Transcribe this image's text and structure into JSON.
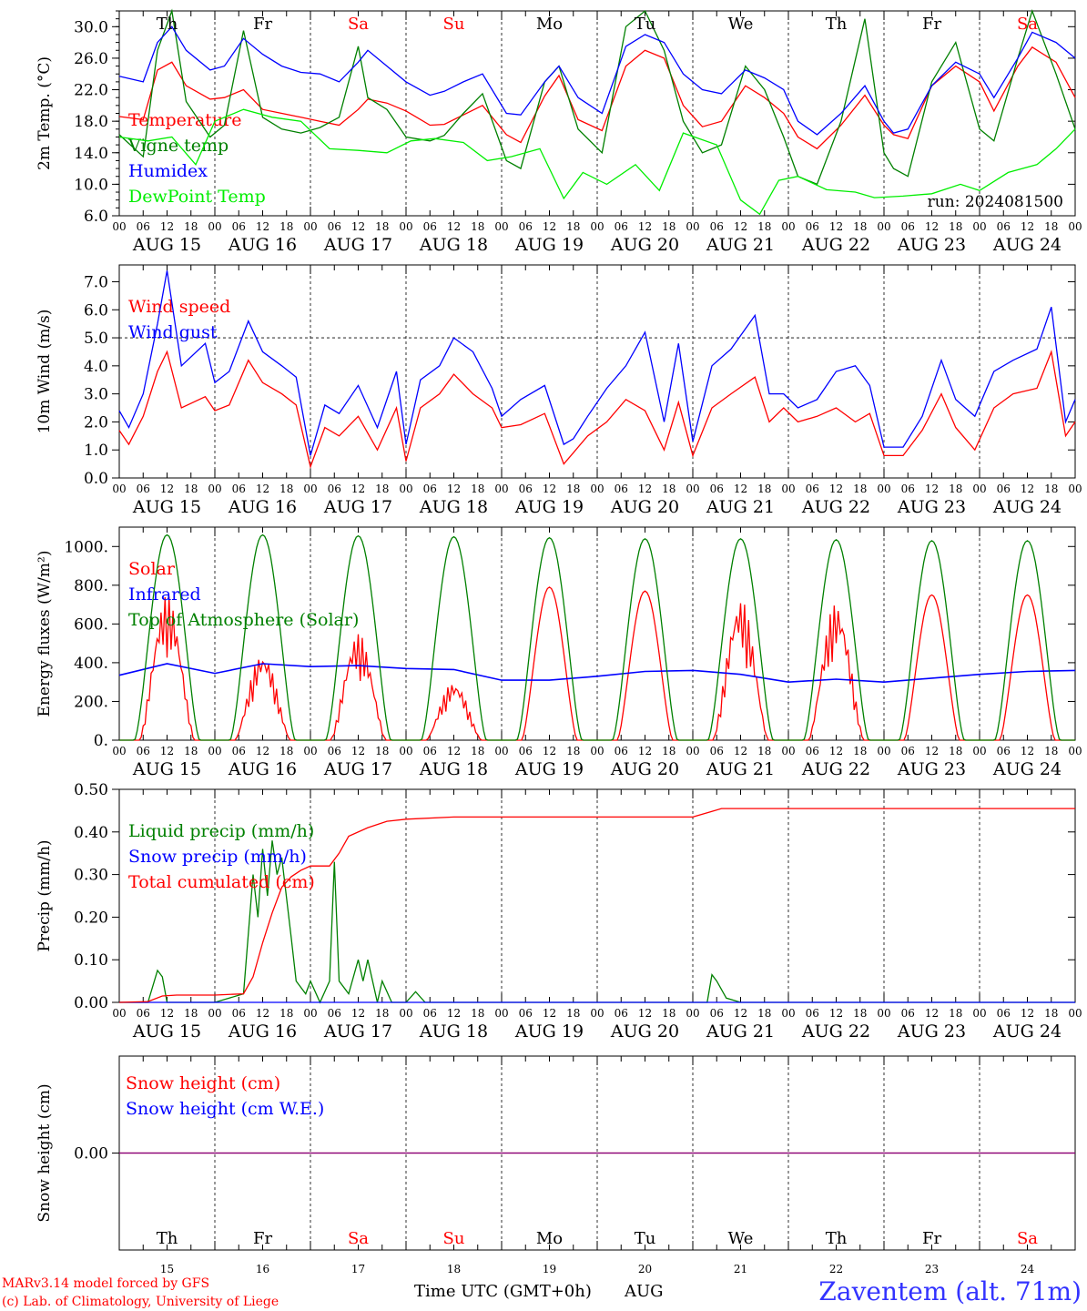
{
  "run_label": "run: 2024081500",
  "footer": {
    "model": "MARv3.14 model forced by GFS",
    "credit": "(c) Lab. of Climatology, University of Liege",
    "xaxis_title": "Time UTC (GMT+0h)",
    "month": "AUG",
    "location": "Zaventem (alt. 71m)"
  },
  "days": [
    {
      "abbr": "Th",
      "date": "AUG 15",
      "num": "15",
      "weekend": false
    },
    {
      "abbr": "Fr",
      "date": "AUG 16",
      "num": "16",
      "weekend": false
    },
    {
      "abbr": "Sa",
      "date": "AUG 17",
      "num": "17",
      "weekend": true
    },
    {
      "abbr": "Su",
      "date": "AUG 18",
      "num": "18",
      "weekend": true
    },
    {
      "abbr": "Mo",
      "date": "AUG 19",
      "num": "19",
      "weekend": false
    },
    {
      "abbr": "Tu",
      "date": "AUG 20",
      "num": "20",
      "weekend": false
    },
    {
      "abbr": "We",
      "date": "AUG 21",
      "num": "21",
      "weekend": false
    },
    {
      "abbr": "Th",
      "date": "AUG 22",
      "num": "22",
      "weekend": false
    },
    {
      "abbr": "Fr",
      "date": "AUG 23",
      "num": "23",
      "weekend": false
    },
    {
      "abbr": "Sa",
      "date": "AUG 24",
      "num": "24",
      "weekend": true
    }
  ],
  "hour_ticks": [
    "00",
    "06",
    "12",
    "18"
  ],
  "colors": {
    "red": "#ff0000",
    "green": "#008000",
    "blue": "#0000ff",
    "lightgreen": "#00ee00",
    "purple": "#800080",
    "weekend": "#ff0000"
  },
  "chart_data": [
    {
      "type": "line",
      "ylabel": "2m Temp. (°C)",
      "ylim": [
        6,
        32
      ],
      "yticks": [
        "6.0",
        "10.0",
        "14.0",
        "18.0",
        "22.0",
        "26.0",
        "30.0"
      ],
      "x_unit": "days since 2024-08-15 00 UTC",
      "xlim": [
        0,
        10
      ],
      "series": [
        {
          "name": "Temperature",
          "color": "#ff0000",
          "x": [
            0,
            0.25,
            0.4,
            0.55,
            0.7,
            0.95,
            1.1,
            1.3,
            1.5,
            1.7,
            1.9,
            2.1,
            2.3,
            2.5,
            2.6,
            2.8,
            3.0,
            3.25,
            3.4,
            3.6,
            3.8,
            4.05,
            4.2,
            4.45,
            4.6,
            4.8,
            5.05,
            5.3,
            5.5,
            5.7,
            5.9,
            6.1,
            6.3,
            6.55,
            6.75,
            6.95,
            7.1,
            7.3,
            7.55,
            7.8,
            8.0,
            8.1,
            8.25,
            8.5,
            8.75,
            9.0,
            9.15,
            9.4,
            9.55,
            9.8,
            10.0
          ],
          "y": [
            18.6,
            18.2,
            24.5,
            25.5,
            22.5,
            20.8,
            21.0,
            22.0,
            19.5,
            19.0,
            18.5,
            18.0,
            17.5,
            19.5,
            20.8,
            20.3,
            19.3,
            17.5,
            17.6,
            18.8,
            20.0,
            16.3,
            15.3,
            21.2,
            23.8,
            18.2,
            16.8,
            25.0,
            27.0,
            26.0,
            20.0,
            17.3,
            18.0,
            22.5,
            21.0,
            19.0,
            16.0,
            14.5,
            17.5,
            21.3,
            17.5,
            16.3,
            15.8,
            22.5,
            25.0,
            23.0,
            19.3,
            25.0,
            27.4,
            25.5,
            21.0
          ]
        },
        {
          "name": "Vigne temp",
          "color": "#008000",
          "x": [
            0,
            0.25,
            0.4,
            0.55,
            0.7,
            0.95,
            1.1,
            1.3,
            1.5,
            1.7,
            1.9,
            2.1,
            2.3,
            2.5,
            2.6,
            2.8,
            3.0,
            3.25,
            3.4,
            3.6,
            3.8,
            4.05,
            4.2,
            4.45,
            4.6,
            4.8,
            5.05,
            5.3,
            5.5,
            5.7,
            5.9,
            6.1,
            6.3,
            6.55,
            6.75,
            6.95,
            7.1,
            7.3,
            7.55,
            7.8,
            8.0,
            8.1,
            8.25,
            8.5,
            8.75,
            9.0,
            9.15,
            9.4,
            9.55,
            9.8,
            10.0
          ],
          "y": [
            16.3,
            13.5,
            27.0,
            32.0,
            20.5,
            16.0,
            17.5,
            29.5,
            18.5,
            17.0,
            16.5,
            17.2,
            18.5,
            27.5,
            21.0,
            19.5,
            16.0,
            15.5,
            16.2,
            19.0,
            21.5,
            13.0,
            12.0,
            23.0,
            25.0,
            17.0,
            14.0,
            30.0,
            32.0,
            27.0,
            18.0,
            14.0,
            15.0,
            25.0,
            22.0,
            16.0,
            11.0,
            10.0,
            18.0,
            31.0,
            14.0,
            12.0,
            11.0,
            23.0,
            28.0,
            17.0,
            15.5,
            26.0,
            32.0,
            24.0,
            17.0
          ]
        },
        {
          "name": "Humidex",
          "color": "#0000ff",
          "x": [
            0,
            0.25,
            0.4,
            0.55,
            0.7,
            0.95,
            1.1,
            1.3,
            1.5,
            1.7,
            1.9,
            2.1,
            2.3,
            2.5,
            2.6,
            2.8,
            3.0,
            3.25,
            3.4,
            3.6,
            3.8,
            4.05,
            4.2,
            4.45,
            4.6,
            4.8,
            5.05,
            5.3,
            5.5,
            5.7,
            5.9,
            6.1,
            6.3,
            6.55,
            6.75,
            6.95,
            7.1,
            7.3,
            7.55,
            7.8,
            8.0,
            8.1,
            8.25,
            8.5,
            8.75,
            9.0,
            9.15,
            9.4,
            9.55,
            9.8,
            10.0
          ],
          "y": [
            23.7,
            23.0,
            28.0,
            30.0,
            27.0,
            24.5,
            25.0,
            28.5,
            26.5,
            25.0,
            24.2,
            24.0,
            23.0,
            25.5,
            27.0,
            25.0,
            23.0,
            21.3,
            21.8,
            23.0,
            24.0,
            19.0,
            18.8,
            23.0,
            25.0,
            21.0,
            19.0,
            27.5,
            29.0,
            28.0,
            24.0,
            22.0,
            21.5,
            24.5,
            23.5,
            22.0,
            18.0,
            16.3,
            19.0,
            22.5,
            18.0,
            16.5,
            17.0,
            22.5,
            25.5,
            24.0,
            21.0,
            26.0,
            29.3,
            28.0,
            26.0
          ]
        },
        {
          "name": "DewPoint Temp",
          "color": "#00ee00",
          "x": [
            0,
            0.3,
            0.55,
            0.8,
            1.0,
            1.3,
            1.6,
            1.9,
            2.2,
            2.5,
            2.8,
            3.05,
            3.3,
            3.6,
            3.85,
            4.1,
            4.4,
            4.65,
            4.85,
            5.1,
            5.4,
            5.65,
            5.9,
            6.25,
            6.5,
            6.7,
            6.9,
            7.1,
            7.4,
            7.7,
            7.9,
            8.2,
            8.5,
            8.8,
            9.0,
            9.3,
            9.6,
            9.8,
            10.0
          ],
          "y": [
            16.0,
            15.5,
            16.0,
            12.5,
            18.0,
            19.5,
            18.5,
            18.0,
            14.5,
            14.3,
            14.0,
            15.5,
            15.8,
            15.3,
            13.0,
            13.5,
            14.5,
            8.2,
            11.5,
            10.0,
            12.5,
            9.2,
            16.5,
            15.0,
            8.0,
            6.2,
            10.5,
            11.0,
            9.3,
            9.0,
            8.3,
            8.5,
            8.8,
            10.0,
            9.2,
            11.5,
            12.5,
            14.5,
            17.0
          ]
        }
      ]
    },
    {
      "type": "line",
      "ylabel": "10m Wind (m/s)",
      "ylim": [
        0,
        7.6
      ],
      "yticks": [
        "0.0",
        "1.0",
        "2.0",
        "3.0",
        "4.0",
        "5.0",
        "6.0",
        "7.0"
      ],
      "reference_line": 5.0,
      "xlim": [
        0,
        10
      ],
      "series": [
        {
          "name": "Wind speed",
          "color": "#ff0000",
          "x": [
            0,
            0.1,
            0.25,
            0.4,
            0.5,
            0.65,
            0.9,
            1.0,
            1.15,
            1.35,
            1.5,
            1.7,
            1.85,
            2.0,
            2.15,
            2.3,
            2.5,
            2.7,
            2.9,
            3.0,
            3.15,
            3.35,
            3.5,
            3.7,
            3.9,
            4.0,
            4.2,
            4.45,
            4.65,
            4.75,
            4.9,
            5.1,
            5.3,
            5.5,
            5.7,
            5.85,
            6.0,
            6.2,
            6.4,
            6.65,
            6.8,
            6.95,
            7.1,
            7.3,
            7.5,
            7.7,
            7.85,
            8.0,
            8.2,
            8.4,
            8.6,
            8.75,
            8.95,
            9.15,
            9.35,
            9.6,
            9.75,
            9.9,
            10.0
          ],
          "y": [
            1.7,
            1.2,
            2.2,
            3.8,
            4.5,
            2.5,
            2.9,
            2.4,
            2.6,
            4.2,
            3.4,
            3.0,
            2.6,
            0.4,
            1.8,
            1.5,
            2.2,
            1.0,
            2.5,
            0.6,
            2.5,
            3.0,
            3.7,
            3.0,
            2.5,
            1.8,
            1.9,
            2.3,
            0.5,
            0.9,
            1.5,
            2.0,
            2.8,
            2.4,
            1.0,
            2.7,
            0.8,
            2.5,
            3.0,
            3.6,
            2.0,
            2.5,
            2.0,
            2.2,
            2.5,
            2.0,
            2.3,
            0.8,
            0.8,
            1.7,
            3.0,
            1.8,
            1.0,
            2.5,
            3.0,
            3.2,
            4.5,
            1.5,
            2.0
          ]
        },
        {
          "name": "Wind gust",
          "color": "#0000ff",
          "x": [
            0,
            0.1,
            0.25,
            0.4,
            0.5,
            0.65,
            0.9,
            1.0,
            1.15,
            1.35,
            1.5,
            1.7,
            1.85,
            2.0,
            2.15,
            2.3,
            2.5,
            2.7,
            2.9,
            3.0,
            3.15,
            3.35,
            3.5,
            3.7,
            3.9,
            4.0,
            4.2,
            4.45,
            4.65,
            4.75,
            4.9,
            5.1,
            5.3,
            5.5,
            5.7,
            5.85,
            6.0,
            6.2,
            6.4,
            6.65,
            6.8,
            6.95,
            7.1,
            7.3,
            7.5,
            7.7,
            7.85,
            8.0,
            8.2,
            8.4,
            8.6,
            8.75,
            8.95,
            9.15,
            9.35,
            9.6,
            9.75,
            9.9,
            10.0
          ],
          "y": [
            2.4,
            1.8,
            3.0,
            5.5,
            7.4,
            4.0,
            4.8,
            3.4,
            3.8,
            5.6,
            4.5,
            4.0,
            3.6,
            0.8,
            2.6,
            2.3,
            3.3,
            1.8,
            3.8,
            1.2,
            3.5,
            4.0,
            5.0,
            4.5,
            3.2,
            2.2,
            2.8,
            3.3,
            1.2,
            1.4,
            2.2,
            3.2,
            4.0,
            5.2,
            2.0,
            4.8,
            1.3,
            4.0,
            4.6,
            5.8,
            3.0,
            3.0,
            2.5,
            2.8,
            3.8,
            4.0,
            3.3,
            1.1,
            1.1,
            2.2,
            4.2,
            2.8,
            2.2,
            3.8,
            4.2,
            4.6,
            6.1,
            2.0,
            2.8
          ]
        }
      ]
    },
    {
      "type": "line",
      "ylabel": "Energy fluxes (W/m²)",
      "ylim": [
        0,
        1100
      ],
      "yticks": [
        "0.",
        "200.",
        "400.",
        "600.",
        "800.",
        "1000."
      ],
      "xlim": [
        0,
        10
      ],
      "series": [
        {
          "name": "Solar",
          "color": "#ff0000",
          "peak_x": 0.54,
          "peaks": [
            750,
            450,
            550,
            300,
            790,
            770,
            730,
            710,
            750,
            750
          ]
        },
        {
          "name": "Infrared",
          "color": "#0000ff",
          "x": [
            0,
            0.5,
            1.0,
            1.5,
            2.0,
            2.5,
            3.0,
            3.5,
            4.0,
            4.5,
            5.0,
            5.5,
            6.0,
            6.5,
            7.0,
            7.5,
            8.0,
            8.5,
            9.0,
            9.5,
            10.0
          ],
          "y": [
            335,
            395,
            345,
            395,
            380,
            385,
            370,
            365,
            310,
            310,
            330,
            355,
            360,
            340,
            300,
            315,
            300,
            320,
            340,
            355,
            360
          ]
        },
        {
          "name": "Top of Atmosphere (Solar)",
          "color": "#008000",
          "peak_x": 0.5,
          "half_width": 0.34,
          "peaks": [
            1060,
            1060,
            1055,
            1050,
            1045,
            1040,
            1040,
            1035,
            1030,
            1030
          ]
        }
      ]
    },
    {
      "type": "line",
      "ylabel": "Precip (mm/h)",
      "ylim": [
        0,
        0.5
      ],
      "yticks": [
        "0.00",
        "0.10",
        "0.20",
        "0.30",
        "0.40",
        "0.50"
      ],
      "xlim": [
        0,
        10
      ],
      "series": [
        {
          "name": "Liquid precip (mm/h)",
          "color": "#008000",
          "x": [
            0,
            0.3,
            0.4,
            0.45,
            0.5,
            0.6,
            1.0,
            1.3,
            1.4,
            1.45,
            1.5,
            1.55,
            1.6,
            1.65,
            1.7,
            1.8,
            1.85,
            1.95,
            2.0,
            2.1,
            2.2,
            2.25,
            2.3,
            2.4,
            2.5,
            2.55,
            2.6,
            2.7,
            2.75,
            2.85,
            3.0,
            3.1,
            3.2,
            6.15,
            6.2,
            6.25,
            6.35,
            6.5,
            10.0
          ],
          "y": [
            0,
            0,
            0.075,
            0.06,
            0,
            0,
            0,
            0.02,
            0.3,
            0.2,
            0.36,
            0.25,
            0.38,
            0.3,
            0.34,
            0.15,
            0.05,
            0.02,
            0.05,
            0,
            0.05,
            0.33,
            0.05,
            0.02,
            0.1,
            0.05,
            0.1,
            0,
            0.05,
            0,
            0,
            0.025,
            0,
            0,
            0.065,
            0.05,
            0.01,
            0,
            0
          ]
        },
        {
          "name": "Snow precip (mm/h)",
          "color": "#0000ff",
          "x": [
            0,
            10
          ],
          "y": [
            0,
            0
          ]
        },
        {
          "name": "Total cumulated (cm)",
          "color": "#ff0000",
          "x": [
            0,
            0.3,
            0.45,
            0.6,
            1.0,
            1.3,
            1.4,
            1.5,
            1.6,
            1.7,
            1.8,
            1.9,
            2.0,
            2.2,
            2.3,
            2.4,
            2.6,
            2.8,
            3.0,
            3.5,
            6.0,
            6.2,
            6.3,
            10.0
          ],
          "y": [
            0,
            0.002,
            0.015,
            0.017,
            0.017,
            0.02,
            0.06,
            0.14,
            0.21,
            0.27,
            0.295,
            0.31,
            0.32,
            0.32,
            0.35,
            0.39,
            0.41,
            0.425,
            0.43,
            0.435,
            0.435,
            0.448,
            0.455,
            0.455
          ]
        }
      ]
    },
    {
      "type": "line",
      "ylabel": "Snow height (cm)",
      "ylim": [
        -1,
        1
      ],
      "yticks": [
        "0.00"
      ],
      "xlim": [
        0,
        10
      ],
      "series": [
        {
          "name": "Snow height (cm)",
          "color": "#ff0000",
          "x": [
            0,
            10
          ],
          "y": [
            0,
            0
          ]
        },
        {
          "name": "Snow height (cm W.E.)",
          "color": "#0000ff",
          "x": [
            0,
            10
          ],
          "y": [
            0,
            0
          ]
        }
      ]
    }
  ]
}
